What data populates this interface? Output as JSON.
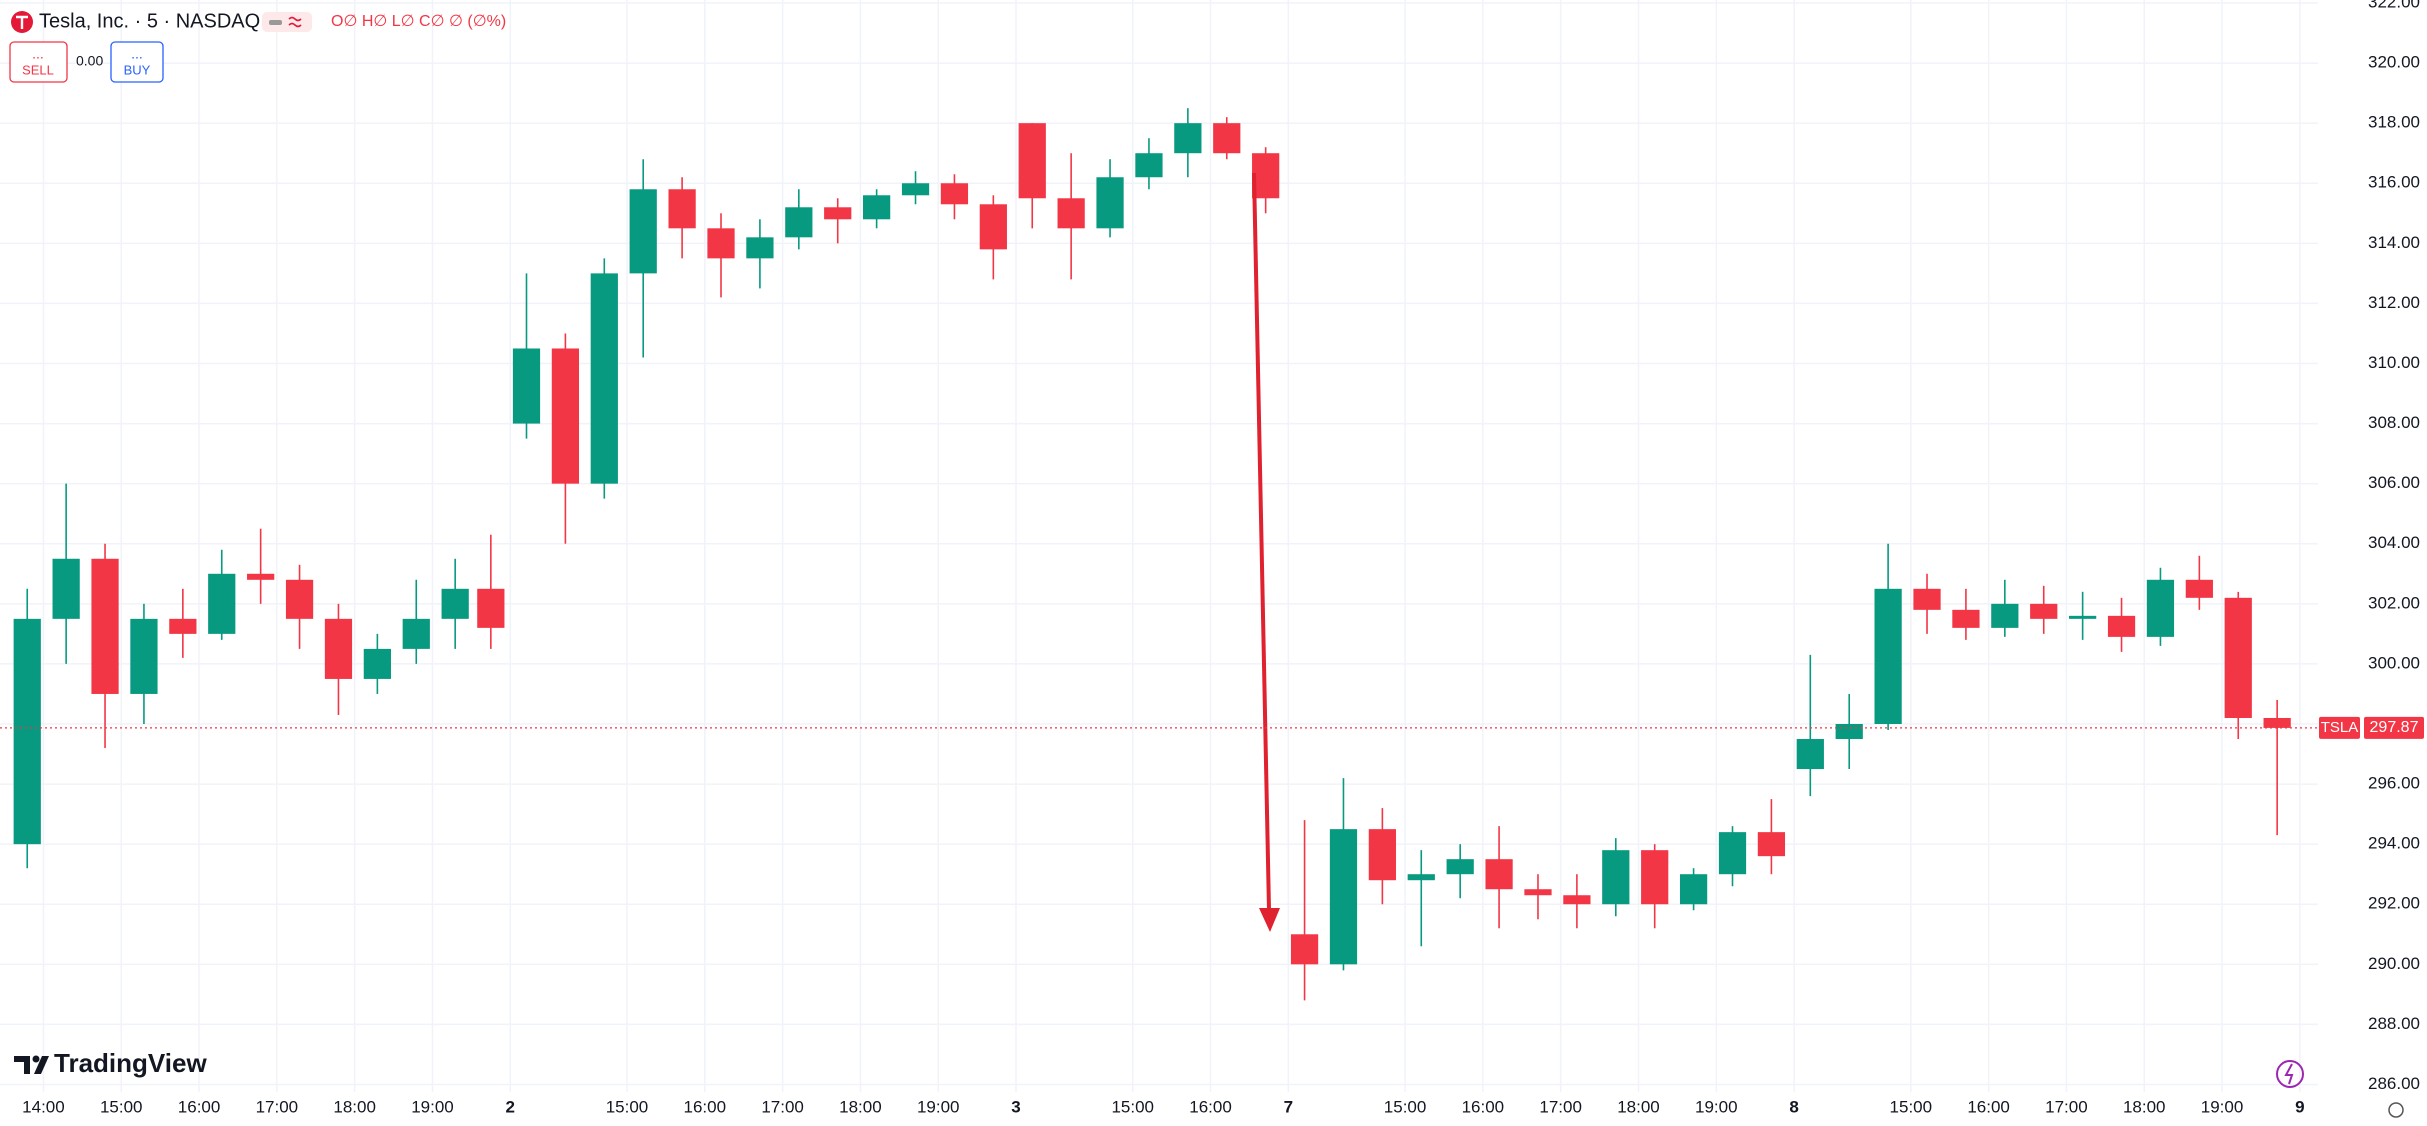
{
  "header": {
    "title": "Tesla, Inc. · 5 · NASDAQ",
    "ohlc": "O∅ H∅ L∅ C∅ ∅ (∅%)",
    "sell_price": "...",
    "sell": "SELL",
    "spread": "0.00",
    "buy_price": "...",
    "buy": "BUY",
    "brand": "TradingView"
  },
  "chart_data": {
    "type": "candlestick",
    "x": [
      2.5,
      8.5,
      14.5,
      20.5,
      26.5,
      32.5,
      38.5,
      44.5,
      50.5,
      56.5,
      62.5,
      68.5,
      74,
      79.5,
      85.5,
      91.5,
      97.5,
      103.5,
      109.5,
      115.5,
      121.5,
      127.5,
      133.5,
      139.5,
      145.5,
      151.5,
      157.5,
      163.5,
      169.5,
      175.5,
      181.5,
      187.5,
      193.5,
      199.5,
      205.5,
      211.5,
      217.5,
      223.5,
      229.5,
      235.5,
      241.5,
      247.5,
      253.5,
      259.5,
      265.5,
      271.5,
      277.5,
      283.5,
      289.5,
      295.5,
      301.5,
      307.5,
      313.5,
      319.5,
      325.5,
      331.5,
      337.5,
      343.5,
      349.5
    ],
    "open": [
      294,
      301.5,
      303.5,
      299,
      301.5,
      301,
      303,
      302.8,
      301.5,
      299.5,
      300.5,
      301.5,
      302.5,
      308,
      310.5,
      306,
      313,
      315.8,
      314.5,
      313.5,
      314.2,
      315.2,
      314.8,
      315.6,
      316,
      315.3,
      318,
      315.5,
      314.5,
      316.2,
      317,
      318,
      317,
      291,
      290,
      294.5,
      292.8,
      293,
      293.5,
      292.5,
      292.3,
      292,
      293.8,
      292,
      293,
      294.4,
      296.5,
      297.5,
      298,
      302.5,
      301.8,
      301.2,
      302,
      301.5,
      301.6,
      300.9,
      302.8,
      302.2,
      298.2
    ],
    "high": [
      302.5,
      306,
      304,
      302,
      302.5,
      303.8,
      304.5,
      303.3,
      302,
      301,
      302.8,
      303.5,
      304.3,
      313,
      311,
      313.5,
      316.8,
      316.2,
      315,
      314.8,
      315.8,
      315.5,
      315.8,
      316.4,
      316.3,
      315.6,
      318,
      317,
      316.8,
      317.5,
      318.5,
      318.2,
      317.2,
      294.8,
      296.2,
      295.2,
      293.8,
      294,
      294.6,
      293,
      293,
      294.2,
      294,
      293.2,
      294.6,
      295.5,
      300.3,
      299,
      304,
      303,
      302.5,
      302.8,
      302.6,
      302.4,
      302.2,
      303.2,
      303.6,
      302.4,
      298.8
    ],
    "low": [
      293.2,
      300,
      297.2,
      298,
      300.2,
      300.8,
      302,
      300.5,
      298.3,
      299,
      300,
      300.5,
      300.5,
      307.5,
      304,
      305.5,
      310.2,
      313.5,
      312.2,
      312.5,
      313.8,
      314,
      314.5,
      315.3,
      314.8,
      312.8,
      314.5,
      312.8,
      314.2,
      315.8,
      316.2,
      316.8,
      315,
      288.8,
      289.8,
      292,
      290.6,
      292.2,
      291.2,
      291.5,
      291.2,
      291.6,
      291.2,
      291.8,
      292.6,
      293,
      295.6,
      296.5,
      297.8,
      301,
      300.8,
      300.9,
      301,
      300.8,
      300.4,
      300.6,
      301.8,
      297.5,
      294.3
    ],
    "close": [
      301.5,
      303.5,
      299,
      301.5,
      301,
      303,
      302.8,
      301.5,
      299.5,
      300.5,
      301.5,
      302.5,
      301.2,
      310.5,
      306,
      313,
      315.8,
      314.5,
      313.5,
      314.2,
      315.2,
      314.8,
      315.6,
      316,
      315.3,
      313.8,
      315.5,
      314.5,
      316.2,
      317,
      318,
      317,
      315.5,
      290,
      294.5,
      292.8,
      293,
      293.5,
      292.5,
      292.3,
      292,
      293.8,
      292,
      293,
      294.4,
      293.6,
      297.5,
      298,
      302.5,
      301.8,
      301.2,
      302,
      301.5,
      301.6,
      300.9,
      302.8,
      302.2,
      298.2,
      297.87
    ],
    "up_color": "#089981",
    "down_color": "#f23645",
    "xlim": [
      -1.7,
      355.8
    ],
    "xticks": [
      {
        "value": 5,
        "label": "14:00"
      },
      {
        "value": 17,
        "label": "15:00"
      },
      {
        "value": 29,
        "label": "16:00"
      },
      {
        "value": 41,
        "label": "17:00"
      },
      {
        "value": 53,
        "label": "18:00"
      },
      {
        "value": 65,
        "label": "19:00"
      },
      {
        "value": 77,
        "label": "2"
      },
      {
        "value": 95,
        "label": "15:00"
      },
      {
        "value": 107,
        "label": "16:00"
      },
      {
        "value": 119,
        "label": "17:00"
      },
      {
        "value": 131,
        "label": "18:00"
      },
      {
        "value": 143,
        "label": "19:00"
      },
      {
        "value": 155,
        "label": "3"
      },
      {
        "value": 173,
        "label": "15:00"
      },
      {
        "value": 185,
        "label": "16:00"
      },
      {
        "value": 197,
        "label": "7"
      },
      {
        "value": 215,
        "label": "15:00"
      },
      {
        "value": 227,
        "label": "16:00"
      },
      {
        "value": 239,
        "label": "17:00"
      },
      {
        "value": 251,
        "label": "18:00"
      },
      {
        "value": 263,
        "label": "19:00"
      },
      {
        "value": 275,
        "label": "8"
      },
      {
        "value": 293,
        "label": "15:00"
      },
      {
        "value": 305,
        "label": "16:00"
      },
      {
        "value": 317,
        "label": "17:00"
      },
      {
        "value": 329,
        "label": "18:00"
      },
      {
        "value": 341,
        "label": "19:00"
      },
      {
        "value": 353,
        "label": "9"
      }
    ],
    "ylim": [
      285.75,
      322.1
    ],
    "yticks": [
      {
        "value": 286,
        "label": "286.00"
      },
      {
        "value": 288,
        "label": "288.00"
      },
      {
        "value": 290,
        "label": "290.00"
      },
      {
        "value": 292,
        "label": "292.00"
      },
      {
        "value": 294,
        "label": "294.00"
      },
      {
        "value": 296,
        "label": "296.00"
      },
      {
        "value": 298,
        "label": "298.00"
      },
      {
        "value": 300,
        "label": "300.00"
      },
      {
        "value": 302,
        "label": "302.00"
      },
      {
        "value": 304,
        "label": "304.00"
      },
      {
        "value": 306,
        "label": "306.00"
      },
      {
        "value": 308,
        "label": "308.00"
      },
      {
        "value": 310,
        "label": "310.00"
      },
      {
        "value": 312,
        "label": "312.00"
      },
      {
        "value": 314,
        "label": "314.00"
      },
      {
        "value": 316,
        "label": "316.00"
      },
      {
        "value": 318,
        "label": "318.00"
      },
      {
        "value": 320,
        "label": "320.00"
      },
      {
        "value": 322,
        "label": "322.00"
      }
    ],
    "grid": true,
    "last_price": {
      "symbol": "TSLA",
      "value": 297.87,
      "label": "297.87"
    }
  }
}
